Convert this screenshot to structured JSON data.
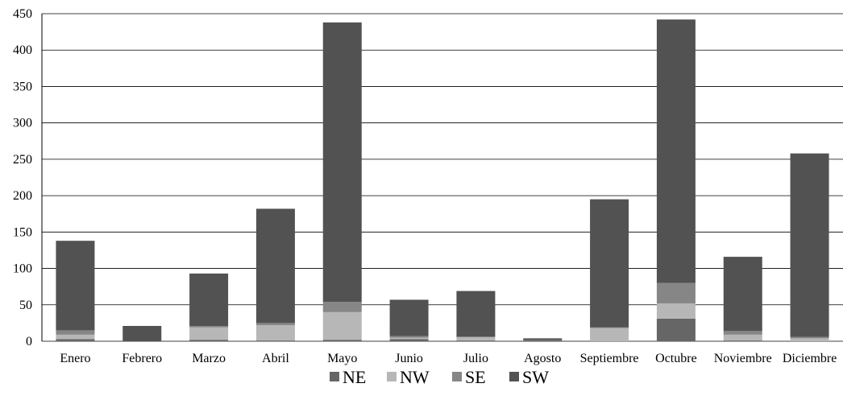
{
  "chart_data": {
    "type": "bar",
    "stacked": true,
    "title": "",
    "xlabel": "",
    "ylabel": "",
    "ylim": [
      0,
      450
    ],
    "yticks": [
      "0",
      "50",
      "100",
      "150",
      "200",
      "250",
      "300",
      "350",
      "400",
      "450"
    ],
    "grid": true,
    "legend_position": "bottom",
    "categories": [
      "Enero",
      "Febrero",
      "Marzo",
      "Abril",
      "Mayo",
      "Junio",
      "Julio",
      "Agosto",
      "Septiembre",
      "Octubre",
      "Noviembre",
      "Diciembre"
    ],
    "series": [
      {
        "name": "NE",
        "color": "#666666",
        "values": [
          3,
          0,
          2,
          1,
          2,
          3,
          1,
          2,
          0,
          31,
          1,
          0
        ]
      },
      {
        "name": "NW",
        "color": "#b7b7b7",
        "values": [
          6,
          0,
          17,
          21,
          38,
          2,
          5,
          0,
          18,
          21,
          8,
          4
        ]
      },
      {
        "name": "SE",
        "color": "#868686",
        "values": [
          6,
          0,
          2,
          3,
          14,
          2,
          0,
          0,
          1,
          28,
          5,
          2
        ]
      },
      {
        "name": "SW",
        "color": "#525252",
        "values": [
          123,
          21,
          72,
          157,
          384,
          50,
          63,
          2,
          176,
          362,
          102,
          252
        ]
      }
    ]
  }
}
